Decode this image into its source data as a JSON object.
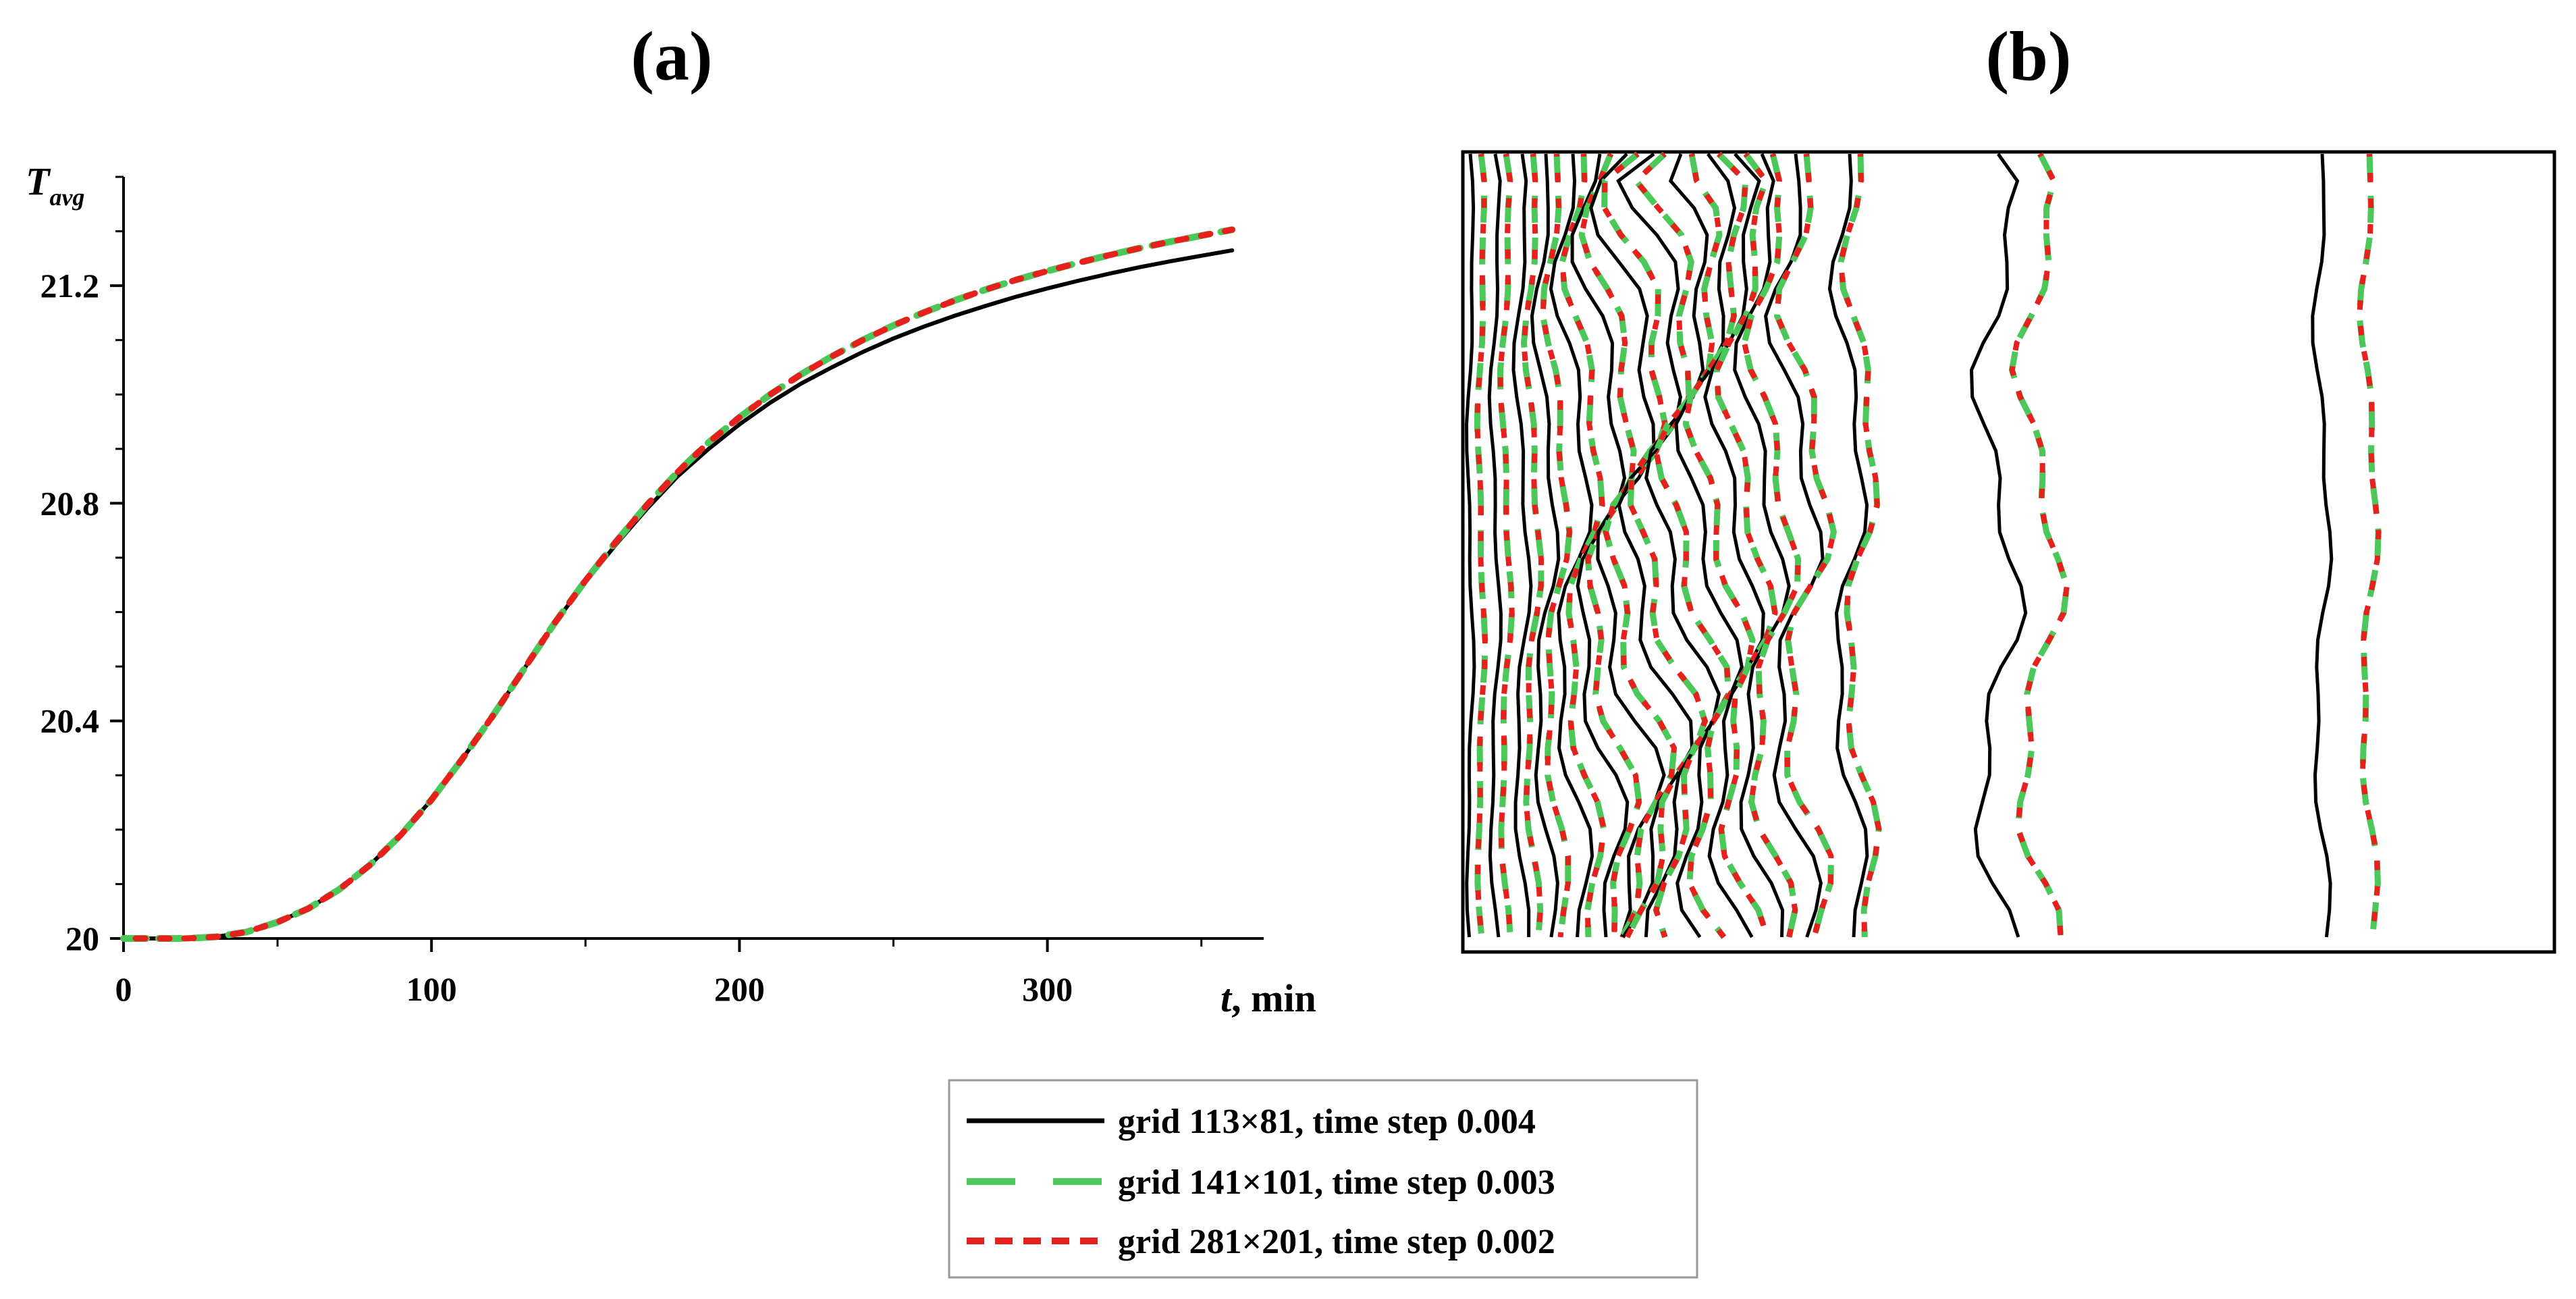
{
  "panels": {
    "a": {
      "label": "(a)"
    },
    "b": {
      "label": "(b)"
    }
  },
  "colors": {
    "axis": "#000000",
    "black_series": "#000000",
    "green_series": "#4cc85a",
    "red_series": "#e8201d"
  },
  "chart_data": [
    {
      "type": "line",
      "panel": "(a)",
      "title": "",
      "ylabel_main": "T",
      "ylabel_sub": "avg",
      "xlabel_italic": "t",
      "xlabel_unit": ", min",
      "xlim": [
        0,
        370
      ],
      "ylim": [
        20,
        21.4
      ],
      "xticks": [
        0,
        100,
        200,
        300
      ],
      "xtick_labels": [
        "0",
        "100",
        "200",
        "300"
      ],
      "yticks": [
        20,
        20.4,
        20.8,
        21.2
      ],
      "ytick_labels": [
        "20",
        "20.4",
        "20.8",
        "21.2"
      ],
      "x": [
        0,
        10,
        20,
        30,
        40,
        50,
        60,
        70,
        80,
        90,
        100,
        110,
        120,
        130,
        140,
        150,
        160,
        170,
        180,
        190,
        200,
        210,
        220,
        230,
        240,
        250,
        260,
        270,
        280,
        290,
        300,
        310,
        320,
        330,
        340,
        350,
        360
      ],
      "series": [
        {
          "name": "grid 113×81, time step 0.004",
          "style": "solid",
          "values": [
            20.0,
            20.0,
            20.0,
            20.003,
            20.012,
            20.03,
            20.055,
            20.09,
            20.135,
            20.19,
            20.255,
            20.33,
            20.41,
            20.495,
            20.58,
            20.655,
            20.725,
            20.79,
            20.85,
            20.9,
            20.945,
            20.985,
            21.02,
            21.05,
            21.078,
            21.103,
            21.125,
            21.145,
            21.163,
            21.18,
            21.195,
            21.209,
            21.222,
            21.234,
            21.245,
            21.255,
            21.265
          ]
        },
        {
          "name": "grid 141×101, time step 0.003",
          "style": "long-dash",
          "values": [
            20.0,
            20.0,
            20.0,
            20.003,
            20.012,
            20.03,
            20.055,
            20.09,
            20.135,
            20.19,
            20.255,
            20.33,
            20.41,
            20.495,
            20.58,
            20.658,
            20.73,
            20.797,
            20.858,
            20.912,
            20.958,
            21.0,
            21.037,
            21.07,
            21.1,
            21.127,
            21.151,
            21.173,
            21.193,
            21.211,
            21.227,
            21.242,
            21.256,
            21.269,
            21.281,
            21.292,
            21.303
          ]
        },
        {
          "name": "grid 281×201, time step 0.002",
          "style": "short-dash",
          "values": [
            20.0,
            20.0,
            20.0,
            20.003,
            20.012,
            20.03,
            20.055,
            20.09,
            20.135,
            20.19,
            20.255,
            20.33,
            20.41,
            20.495,
            20.58,
            20.658,
            20.73,
            20.797,
            20.858,
            20.912,
            20.958,
            21.0,
            21.037,
            21.07,
            21.1,
            21.127,
            21.151,
            21.173,
            21.193,
            21.211,
            21.227,
            21.242,
            21.256,
            21.269,
            21.281,
            21.292,
            21.303
          ]
        }
      ]
    },
    {
      "type": "contour",
      "panel": "(b)",
      "title": "",
      "description": "isotherms in rectangular domain",
      "series": [
        {
          "name": "grid 113×81, time step 0.004",
          "style": "solid"
        },
        {
          "name": "grid 141×101, time step 0.003",
          "style": "long-dash"
        },
        {
          "name": "grid 281×201, time step 0.002",
          "style": "short-dash"
        }
      ]
    }
  ],
  "legend": {
    "position": "bottom-center",
    "items": [
      {
        "label": "grid 113×81, time step 0.004",
        "style": "solid"
      },
      {
        "label": "grid 141×101, time step 0.003",
        "style": "long-dash"
      },
      {
        "label": "grid 281×201, time step 0.002",
        "style": "short-dash"
      }
    ]
  }
}
